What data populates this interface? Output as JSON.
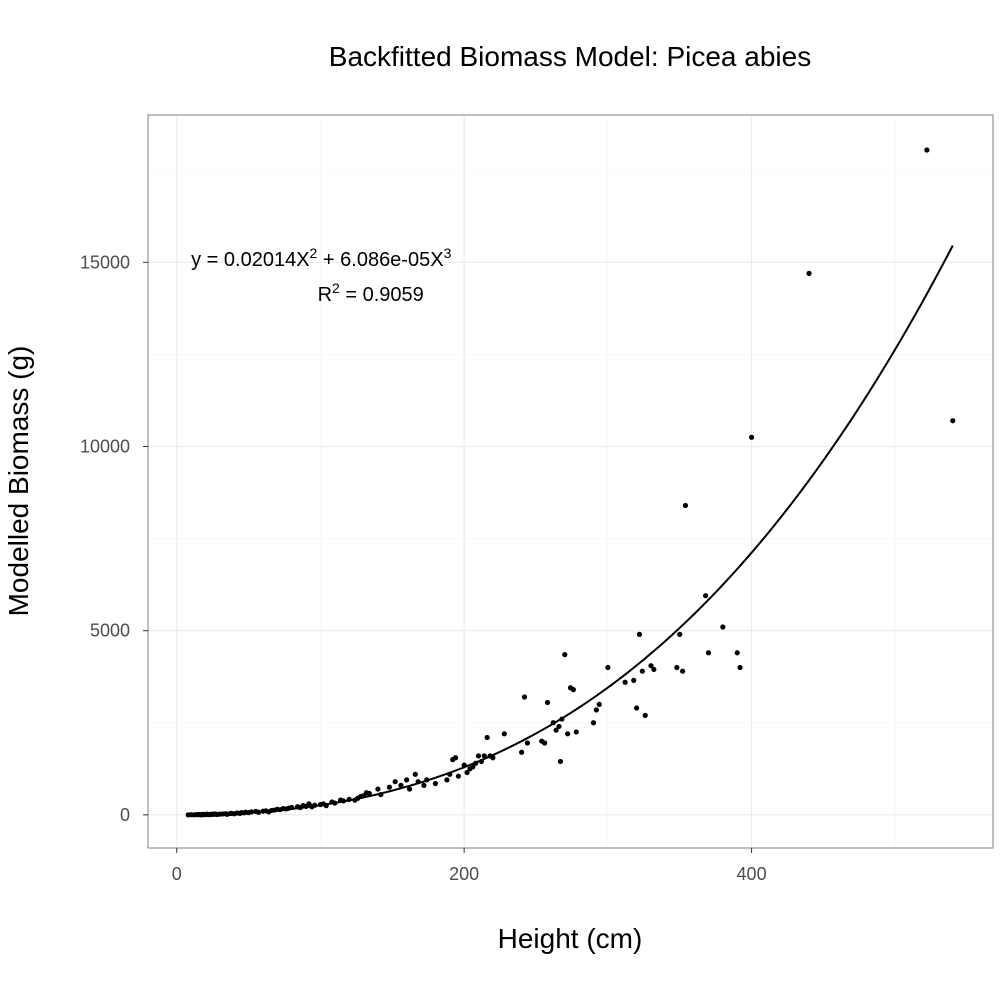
{
  "chart_data": {
    "type": "scatter",
    "title": "Backfitted Biomass Model: Picea abies",
    "xlabel": "Height (cm)",
    "ylabel": "Modelled Biomass (g)",
    "xlim": [
      -20,
      568
    ],
    "ylim": [
      -900,
      19000
    ],
    "x_ticks": [
      0,
      200,
      400
    ],
    "y_ticks": [
      0,
      5000,
      10000,
      15000
    ],
    "x_tick_labels": [
      "0",
      "200",
      "400"
    ],
    "y_tick_labels": [
      "0",
      "5000",
      "10000",
      "15000"
    ],
    "grid": true,
    "annotations": {
      "equation": {
        "prefix": "y = 0.02014X",
        "sup1": "2",
        "middle": " + 6.086e-05X",
        "sup2": "3",
        "anchor": [
          10,
          14900
        ]
      },
      "r_squared": {
        "prefix": "R",
        "sup": "2",
        "suffix": " = 0.9059",
        "anchor": [
          98,
          13950
        ]
      }
    },
    "fit": {
      "name": "",
      "a": 0.02014,
      "b": 6.086e-05,
      "x_range": [
        8,
        540
      ]
    },
    "series": [
      {
        "name": "",
        "points": [
          [
            8,
            0
          ],
          [
            10,
            5
          ],
          [
            12,
            0
          ],
          [
            14,
            10
          ],
          [
            15,
            5
          ],
          [
            16,
            10
          ],
          [
            17,
            0
          ],
          [
            18,
            15
          ],
          [
            19,
            5
          ],
          [
            20,
            10
          ],
          [
            21,
            20
          ],
          [
            22,
            5
          ],
          [
            23,
            15
          ],
          [
            24,
            10
          ],
          [
            25,
            20
          ],
          [
            26,
            15
          ],
          [
            27,
            25
          ],
          [
            28,
            10
          ],
          [
            30,
            20
          ],
          [
            32,
            25
          ],
          [
            34,
            30
          ],
          [
            35,
            15
          ],
          [
            37,
            35
          ],
          [
            38,
            40
          ],
          [
            40,
            30
          ],
          [
            42,
            50
          ],
          [
            44,
            40
          ],
          [
            45,
            60
          ],
          [
            47,
            55
          ],
          [
            48,
            70
          ],
          [
            50,
            60
          ],
          [
            52,
            80
          ],
          [
            55,
            90
          ],
          [
            57,
            70
          ],
          [
            60,
            100
          ],
          [
            62,
            110
          ],
          [
            64,
            80
          ],
          [
            66,
            120
          ],
          [
            68,
            130
          ],
          [
            70,
            150
          ],
          [
            72,
            140
          ],
          [
            74,
            170
          ],
          [
            76,
            160
          ],
          [
            78,
            180
          ],
          [
            80,
            200
          ],
          [
            84,
            220
          ],
          [
            86,
            200
          ],
          [
            88,
            250
          ],
          [
            90,
            230
          ],
          [
            92,
            300
          ],
          [
            94,
            220
          ],
          [
            96,
            260
          ],
          [
            100,
            280
          ],
          [
            102,
            300
          ],
          [
            104,
            250
          ],
          [
            108,
            350
          ],
          [
            110,
            320
          ],
          [
            114,
            400
          ],
          [
            116,
            380
          ],
          [
            120,
            420
          ],
          [
            124,
            400
          ],
          [
            126,
            450
          ],
          [
            128,
            500
          ],
          [
            130,
            520
          ],
          [
            132,
            600
          ],
          [
            134,
            580
          ],
          [
            140,
            700
          ],
          [
            142,
            550
          ],
          [
            148,
            750
          ],
          [
            152,
            900
          ],
          [
            156,
            800
          ],
          [
            160,
            950
          ],
          [
            162,
            700
          ],
          [
            166,
            1100
          ],
          [
            168,
            900
          ],
          [
            172,
            800
          ],
          [
            174,
            950
          ],
          [
            180,
            850
          ],
          [
            188,
            950
          ],
          [
            190,
            1100
          ],
          [
            192,
            1500
          ],
          [
            194,
            1550
          ],
          [
            196,
            1050
          ],
          [
            200,
            1350
          ],
          [
            202,
            1150
          ],
          [
            204,
            1250
          ],
          [
            206,
            1300
          ],
          [
            208,
            1400
          ],
          [
            210,
            1600
          ],
          [
            212,
            1450
          ],
          [
            214,
            1600
          ],
          [
            216,
            2100
          ],
          [
            218,
            1600
          ],
          [
            220,
            1550
          ],
          [
            228,
            2200
          ],
          [
            240,
            1700
          ],
          [
            242,
            3200
          ],
          [
            244,
            1950
          ],
          [
            254,
            2000
          ],
          [
            256,
            1950
          ],
          [
            258,
            3050
          ],
          [
            262,
            2500
          ],
          [
            264,
            2300
          ],
          [
            266,
            2400
          ],
          [
            267,
            1450
          ],
          [
            268,
            2600
          ],
          [
            270,
            4350
          ],
          [
            272,
            2200
          ],
          [
            274,
            3450
          ],
          [
            276,
            3400
          ],
          [
            278,
            2250
          ],
          [
            290,
            2500
          ],
          [
            292,
            2850
          ],
          [
            294,
            3000
          ],
          [
            300,
            4000
          ],
          [
            312,
            3600
          ],
          [
            318,
            3650
          ],
          [
            320,
            2900
          ],
          [
            322,
            4900
          ],
          [
            324,
            3900
          ],
          [
            326,
            2700
          ],
          [
            330,
            4050
          ],
          [
            332,
            3950
          ],
          [
            348,
            4000
          ],
          [
            350,
            4900
          ],
          [
            352,
            3900
          ],
          [
            354,
            8400
          ],
          [
            368,
            5950
          ],
          [
            370,
            4400
          ],
          [
            380,
            5100
          ],
          [
            390,
            4400
          ],
          [
            392,
            4000
          ],
          [
            400,
            10250
          ],
          [
            440,
            14700
          ],
          [
            522,
            18050
          ],
          [
            540,
            10700
          ]
        ]
      }
    ]
  }
}
